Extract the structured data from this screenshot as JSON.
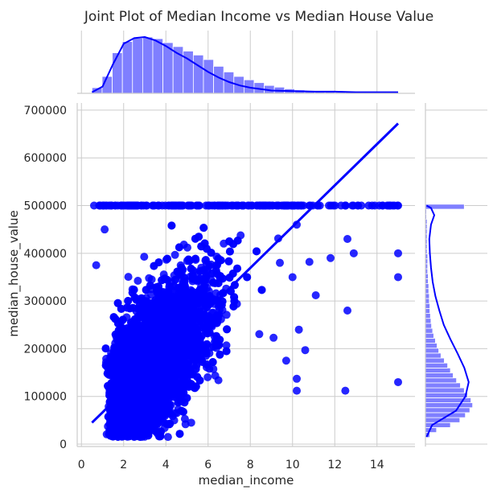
{
  "title": "Joint Plot of Median Income vs Median House Value",
  "chart_data": {
    "type": "scatter",
    "title": "Joint Plot of Median Income vs Median House Value",
    "xlabel": "median_income",
    "ylabel": "median_house_value",
    "xlim": [
      -0.2,
      15.8
    ],
    "ylim": [
      -5000,
      715000
    ],
    "xticks": [
      "0",
      "2",
      "4",
      "6",
      "8",
      "10",
      "12",
      "14"
    ],
    "yticks": [
      "0",
      "100000",
      "200000",
      "300000",
      "400000",
      "500000",
      "600000",
      "700000"
    ],
    "grid": true,
    "colors": {
      "points": "#0000ff",
      "hist": "#7f7fff",
      "kde": "#0000ff"
    },
    "regression": {
      "x": [
        0.5,
        15.0
      ],
      "y": [
        45000,
        672000
      ]
    },
    "scatter_outliers": [
      [
        15.0,
        500001
      ],
      [
        14.6,
        500001
      ],
      [
        13.9,
        500001
      ],
      [
        13.1,
        500001
      ],
      [
        12.3,
        500001
      ],
      [
        11.2,
        500001
      ],
      [
        10.4,
        500001
      ],
      [
        9.6,
        500001
      ],
      [
        8.8,
        500001
      ],
      [
        0.6,
        500001
      ],
      [
        1.0,
        500001
      ],
      [
        1.6,
        500001
      ],
      [
        2.2,
        500001
      ],
      [
        15.0,
        400000
      ],
      [
        15.0,
        350000
      ],
      [
        15.0,
        130000
      ],
      [
        12.6,
        280000
      ],
      [
        12.5,
        112000
      ],
      [
        10.2,
        137000
      ],
      [
        10.2,
        112000
      ],
      [
        11.1,
        312000
      ],
      [
        10.6,
        197000
      ],
      [
        10.3,
        240000
      ],
      [
        9.7,
        175000
      ],
      [
        9.4,
        380000
      ],
      [
        10.8,
        382000
      ],
      [
        11.8,
        390000
      ],
      [
        12.9,
        400000
      ],
      [
        12.6,
        430000
      ],
      [
        10.0,
        350000
      ],
      [
        9.1,
        223000
      ],
      [
        10.2,
        460000
      ],
      [
        1.1,
        450000
      ],
      [
        0.7,
        375000
      ],
      [
        4.1,
        15000
      ],
      [
        3.5,
        30000
      ],
      [
        5.2,
        45000
      ]
    ],
    "x_marginal_hist": {
      "bin_start": 0.5,
      "bin_width": 0.48,
      "counts": [
        0.1,
        0.3,
        0.72,
        0.92,
        0.98,
        1.0,
        0.97,
        0.9,
        0.83,
        0.75,
        0.68,
        0.6,
        0.48,
        0.38,
        0.3,
        0.24,
        0.19,
        0.14,
        0.11,
        0.08,
        0.06,
        0.05,
        0.04,
        0.03,
        0.02,
        0.02,
        0.02,
        0.02,
        0.01,
        0.01,
        0.01
      ]
    },
    "x_marginal_kde": {
      "x": [
        0.5,
        1.0,
        1.5,
        2.0,
        2.5,
        3.0,
        3.5,
        4.0,
        4.5,
        5.0,
        5.5,
        6.0,
        6.5,
        7.0,
        7.5,
        8.0,
        9.0,
        10.0,
        11.0,
        12.0,
        13.0,
        14.0,
        15.0
      ],
      "y": [
        0.02,
        0.12,
        0.52,
        0.88,
        0.98,
        1.0,
        0.94,
        0.84,
        0.72,
        0.62,
        0.5,
        0.38,
        0.28,
        0.2,
        0.14,
        0.1,
        0.05,
        0.04,
        0.03,
        0.03,
        0.02,
        0.02,
        0.02
      ]
    },
    "y_marginal_hist": {
      "bin_start": 14000,
      "bin_width": 10400,
      "counts": [
        0.08,
        0.2,
        0.45,
        0.62,
        0.72,
        0.8,
        0.85,
        0.82,
        0.76,
        0.7,
        0.63,
        0.56,
        0.5,
        0.45,
        0.4,
        0.34,
        0.28,
        0.24,
        0.21,
        0.18,
        0.15,
        0.13,
        0.11,
        0.1,
        0.09,
        0.08,
        0.08,
        0.07,
        0.07,
        0.06,
        0.06,
        0.05,
        0.05,
        0.04,
        0.04,
        0.04,
        0.04,
        0.03,
        0.03,
        0.03,
        0.03,
        0.03,
        0.03,
        0.03,
        0.02,
        0.02,
        0.7
      ]
    },
    "y_marginal_kde": {
      "y": [
        15000,
        40000,
        70000,
        100000,
        130000,
        160000,
        190000,
        220000,
        250000,
        280000,
        310000,
        340000,
        370000,
        400000,
        430000,
        460000,
        480000,
        495000,
        500000
      ],
      "x": [
        0.02,
        0.12,
        0.55,
        0.72,
        0.78,
        0.7,
        0.58,
        0.45,
        0.33,
        0.25,
        0.18,
        0.13,
        0.1,
        0.08,
        0.07,
        0.1,
        0.16,
        0.1,
        0.02
      ]
    }
  }
}
